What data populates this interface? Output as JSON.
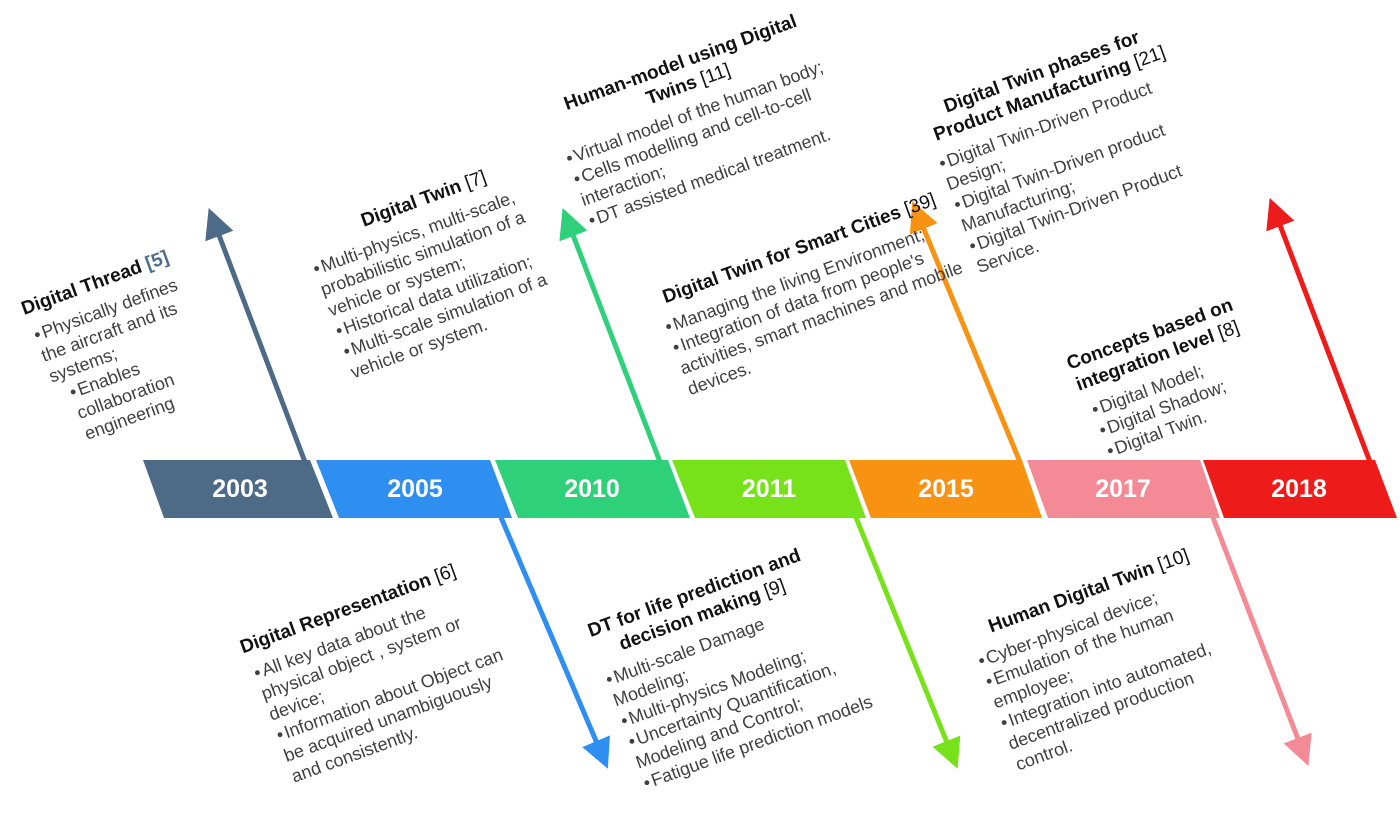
{
  "timeline": {
    "years": [
      {
        "label": "2003",
        "color": "#4d6b87"
      },
      {
        "label": "2005",
        "color": "#2e8ff0"
      },
      {
        "label": "2010",
        "color": "#2fd07a"
      },
      {
        "label": "2011",
        "color": "#77e21a"
      },
      {
        "label": "2015",
        "color": "#f79213"
      },
      {
        "label": "2017",
        "color": "#f48a96"
      },
      {
        "label": "2018",
        "color": "#ee1b1b"
      }
    ]
  },
  "events": [
    {
      "id": "digital-thread",
      "title": "Digital Thread ",
      "ref": "[5]",
      "bullets": [
        "Physically defines the aircraft and its systems;",
        "Enables collaboration engineering"
      ]
    },
    {
      "id": "digital-twin",
      "title": "Digital Twin ",
      "ref": "[7]",
      "bullets": [
        "Multi-physics, multi-scale, probabilistic simulation of a vehicle or system;",
        "Historical data utilization;",
        "Multi-scale simulation of a vehicle or system."
      ]
    },
    {
      "id": "human-model",
      "title": "Human-model using Digital Twins ",
      "ref": "[11]",
      "bullets": [
        "Virtual model of the human body;",
        "Cells modelling and cell-to-cell interaction;",
        "DT assisted medical treatment."
      ]
    },
    {
      "id": "smart-cities",
      "title": "Digital Twin for Smart Cities ",
      "ref": "[39]",
      "bullets": [
        "Managing the living Environment;",
        "Integration of data from people's activities, smart machines and mobile devices."
      ]
    },
    {
      "id": "product-manufacturing",
      "title": "Digital Twin phases for Product Manufacturing ",
      "ref": "[21]",
      "bullets": [
        "Digital Twin-Driven Product Design;",
        "Digital Twin-Driven product Manufacturing;",
        "Digital Twin-Driven Product Service."
      ]
    },
    {
      "id": "integration-level",
      "title": "Concepts based on integration level ",
      "ref": "[8]",
      "bullets": [
        "Digital Model;",
        "Digital Shadow;",
        "Digital Twin."
      ]
    },
    {
      "id": "digital-representation",
      "title": "Digital Representation ",
      "ref": "[6]",
      "bullets": [
        "All key data about the physical object , system or device;",
        "Information about Object can be acquired unambiguously and consistently."
      ]
    },
    {
      "id": "life-prediction",
      "title": "DT for life prediction and decision making ",
      "ref": "[9]",
      "bullets": [
        "Multi-scale Damage Modeling;",
        "Multi-physics Modeling;",
        "Uncertainty Quantification, Modeling and Control;",
        "Fatigue life prediction models"
      ]
    },
    {
      "id": "human-digital-twin",
      "title": "Human Digital Twin ",
      "ref": "[10]",
      "bullets": [
        "Cyber-physical device;",
        "Emulation of the human employee;",
        "Integration into automated, decentralized production control."
      ]
    }
  ]
}
